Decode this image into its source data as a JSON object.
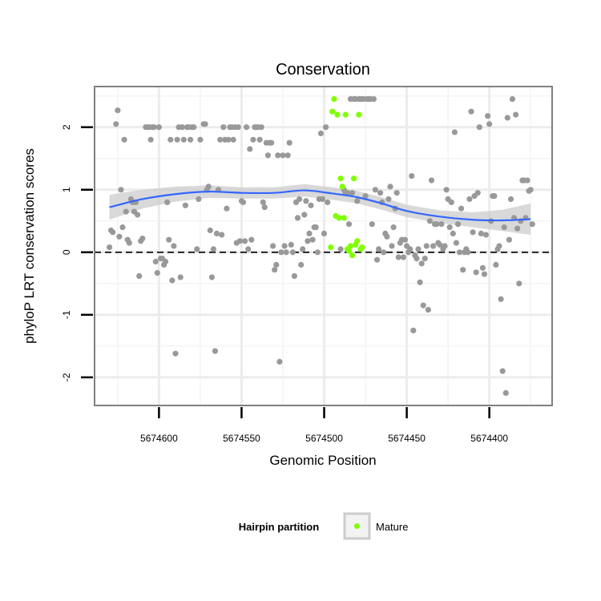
{
  "chart_data": {
    "type": "scatter",
    "title": "Conservation",
    "xlabel": "Genomic Position",
    "ylabel": "phyloP LRT conservation scores",
    "x_reversed": true,
    "xlim": [
      5674639,
      5674362
    ],
    "ylim": [
      -2.45,
      2.65
    ],
    "xticks": [
      5674600,
      5674550,
      5674500,
      5674450,
      5674400
    ],
    "yticks": [
      -2,
      -1,
      0,
      1,
      2
    ],
    "grid": true,
    "reference_line": {
      "y": 0,
      "style": "dashed"
    },
    "legend": {
      "title": "Hairpin partition",
      "position": "bottom",
      "entries": [
        {
          "label": "Mature",
          "color": "#7fff00"
        }
      ]
    },
    "colors": {
      "other": "#999999",
      "mature": "#7fff00",
      "smooth": "#3366ff",
      "band": "#cccccc"
    },
    "series": [
      {
        "group": "other",
        "points": [
          [
            5674630,
            0.08
          ],
          [
            5674629,
            0.35
          ],
          [
            5674628,
            0.32
          ],
          [
            5674626,
            2.05
          ],
          [
            5674625,
            2.27
          ],
          [
            5674624,
            0.25
          ],
          [
            5674623,
            1.0
          ],
          [
            5674622,
            0.4
          ],
          [
            5674621,
            1.8
          ],
          [
            5674620,
            0.65
          ],
          [
            5674619,
            0.2
          ],
          [
            5674618,
            0.15
          ],
          [
            5674617,
            0.85
          ],
          [
            5674616,
            0.8
          ],
          [
            5674615,
            0.65
          ],
          [
            5674614,
            0.8
          ],
          [
            5674613,
            0.6
          ],
          [
            5674612,
            -0.38
          ],
          [
            5674611,
            0.18
          ],
          [
            5674610,
            0.22
          ],
          [
            5674608,
            2.0
          ],
          [
            5674607,
            2.0
          ],
          [
            5674606,
            2.0
          ],
          [
            5674605,
            1.8
          ],
          [
            5674604,
            2.0
          ],
          [
            5674603,
            2.0
          ],
          [
            5674602,
            -0.15
          ],
          [
            5674601,
            -0.33
          ],
          [
            5674600,
            2.0
          ],
          [
            5674599,
            -0.1
          ],
          [
            5674598,
            -0.1
          ],
          [
            5674597,
            -0.2
          ],
          [
            5674596,
            -0.15
          ],
          [
            5674595,
            0.8
          ],
          [
            5674594,
            0.2
          ],
          [
            5674593,
            1.8
          ],
          [
            5674592,
            -0.45
          ],
          [
            5674591,
            0.1
          ],
          [
            5674590,
            -1.62
          ],
          [
            5674589,
            1.8
          ],
          [
            5674588,
            2.0
          ],
          [
            5674587,
            -0.4
          ],
          [
            5674586,
            2.0
          ],
          [
            5674585,
            1.8
          ],
          [
            5674584,
            0.75
          ],
          [
            5674583,
            2.0
          ],
          [
            5674582,
            2.0
          ],
          [
            5674581,
            1.8
          ],
          [
            5674580,
            2.0
          ],
          [
            5674579,
            2.0
          ],
          [
            5674577,
            0.05
          ],
          [
            5674576,
            0.85
          ],
          [
            5674575,
            1.8
          ],
          [
            5674573,
            2.05
          ],
          [
            5674572,
            2.05
          ],
          [
            5674571,
            1.0
          ],
          [
            5674570,
            1.05
          ],
          [
            5674569,
            0.35
          ],
          [
            5674568,
            -0.4
          ],
          [
            5674567,
            0.05
          ],
          [
            5674566,
            -1.58
          ],
          [
            5674565,
            0.3
          ],
          [
            5674564,
            1.0
          ],
          [
            5674563,
            1.8
          ],
          [
            5674562,
            0.28
          ],
          [
            5674561,
            2.0
          ],
          [
            5674560,
            1.8
          ],
          [
            5674559,
            0.7
          ],
          [
            5674558,
            1.8
          ],
          [
            5674557,
            2.0
          ],
          [
            5674556,
            2.0
          ],
          [
            5674555,
            1.8
          ],
          [
            5674554,
            2.0
          ],
          [
            5674553,
            0.15
          ],
          [
            5674552,
            2.0
          ],
          [
            5674551,
            0.18
          ],
          [
            5674550,
            0.82
          ],
          [
            5674549,
            0.8
          ],
          [
            5674548,
            0.18
          ],
          [
            5674547,
            2.0
          ],
          [
            5674546,
            0.05
          ],
          [
            5674545,
            1.65
          ],
          [
            5674544,
            0.2
          ],
          [
            5674543,
            1.8
          ],
          [
            5674542,
            2.0
          ],
          [
            5674541,
            2.0
          ],
          [
            5674540,
            2.0
          ],
          [
            5674539,
            1.8
          ],
          [
            5674538,
            2.0
          ],
          [
            5674537,
            0.8
          ],
          [
            5674536,
            0.72
          ],
          [
            5674535,
            1.75
          ],
          [
            5674534,
            1.55
          ],
          [
            5674533,
            1.75
          ],
          [
            5674532,
            1.75
          ],
          [
            5674531,
            0.1
          ],
          [
            5674530,
            -0.28
          ],
          [
            5674529,
            -0.2
          ],
          [
            5674528,
            1.55
          ],
          [
            5674527,
            -1.75
          ],
          [
            5674526,
            0.0
          ],
          [
            5674525,
            1.55
          ],
          [
            5674524,
            0.1
          ],
          [
            5674523,
            0.0
          ],
          [
            5674522,
            1.55
          ],
          [
            5674521,
            1.75
          ],
          [
            5674520,
            0.12
          ],
          [
            5674519,
            0.0
          ],
          [
            5674518,
            -0.38
          ],
          [
            5674517,
            0.8
          ],
          [
            5674516,
            0.55
          ],
          [
            5674515,
            0.85
          ],
          [
            5674514,
            -0.2
          ],
          [
            5674513,
            0.05
          ],
          [
            5674512,
            0.6
          ],
          [
            5674511,
            0.82
          ],
          [
            5674510,
            0.18
          ],
          [
            5674509,
            0.3
          ],
          [
            5674508,
            0.75
          ],
          [
            5674507,
            0.2
          ],
          [
            5674506,
            0.4
          ],
          [
            5674505,
            0.4
          ],
          [
            5674504,
            0.0
          ],
          [
            5674503,
            0.85
          ],
          [
            5674502,
            1.9
          ],
          [
            5674501,
            0.85
          ],
          [
            5674500,
            0.3
          ],
          [
            5674499,
            2.0
          ],
          [
            5674498,
            0.8
          ],
          [
            5674490,
            0.05
          ],
          [
            5674488,
            1.0
          ],
          [
            5674487,
            0.95
          ],
          [
            5674486,
            0.95
          ],
          [
            5674485,
            0.45
          ],
          [
            5674484,
            2.45
          ],
          [
            5674483,
            0.95
          ],
          [
            5674482,
            2.45
          ],
          [
            5674481,
            2.45
          ],
          [
            5674480,
            0.82
          ],
          [
            5674479,
            2.45
          ],
          [
            5674478,
            2.45
          ],
          [
            5674477,
            2.45
          ],
          [
            5674476,
            2.45
          ],
          [
            5674475,
            0.9
          ],
          [
            5674474,
            2.45
          ],
          [
            5674473,
            2.45
          ],
          [
            5674472,
            2.45
          ],
          [
            5674471,
            0.45
          ],
          [
            5674470,
            2.45
          ],
          [
            5674469,
            1.0
          ],
          [
            5674468,
            -0.12
          ],
          [
            5674467,
            0.05
          ],
          [
            5674466,
            0.95
          ],
          [
            5674465,
            0.8
          ],
          [
            5674464,
            0.0
          ],
          [
            5674463,
            0.3
          ],
          [
            5674462,
            0.25
          ],
          [
            5674461,
            0.85
          ],
          [
            5674460,
            1.05
          ],
          [
            5674459,
            0.1
          ],
          [
            5674458,
            0.4
          ],
          [
            5674457,
            0.7
          ],
          [
            5674456,
            0.95
          ],
          [
            5674455,
            -0.08
          ],
          [
            5674454,
            0.15
          ],
          [
            5674453,
            0.2
          ],
          [
            5674452,
            -0.08
          ],
          [
            5674451,
            0.2
          ],
          [
            5674450,
            0.1
          ],
          [
            5674449,
            0.0
          ],
          [
            5674448,
            0.05
          ],
          [
            5674447,
            1.22
          ],
          [
            5674446,
            -1.25
          ],
          [
            5674445,
            -0.05
          ],
          [
            5674444,
            -0.1
          ],
          [
            5674443,
            0.05
          ],
          [
            5674442,
            -0.48
          ],
          [
            5674441,
            -0.18
          ],
          [
            5674440,
            -0.85
          ],
          [
            5674439,
            -0.1
          ],
          [
            5674438,
            0.1
          ],
          [
            5674437,
            -0.92
          ],
          [
            5674436,
            0.5
          ],
          [
            5674435,
            1.15
          ],
          [
            5674434,
            0.1
          ],
          [
            5674433,
            0.45
          ],
          [
            5674432,
            0.45
          ],
          [
            5674431,
            0.15
          ],
          [
            5674430,
            0.12
          ],
          [
            5674429,
            0.45
          ],
          [
            5674428,
            0.05
          ],
          [
            5674427,
            0.1
          ],
          [
            5674426,
            1.0
          ],
          [
            5674425,
            0.85
          ],
          [
            5674424,
            0.4
          ],
          [
            5674423,
            0.8
          ],
          [
            5674422,
            0.3
          ],
          [
            5674421,
            1.92
          ],
          [
            5674420,
            0.15
          ],
          [
            5674419,
            0.45
          ],
          [
            5674418,
            0.0
          ],
          [
            5674417,
            0.7
          ],
          [
            5674416,
            -0.28
          ],
          [
            5674415,
            0.0
          ],
          [
            5674414,
            0.05
          ],
          [
            5674413,
            0.0
          ],
          [
            5674412,
            0.85
          ],
          [
            5674411,
            2.25
          ],
          [
            5674410,
            0.32
          ],
          [
            5674409,
            0.9
          ],
          [
            5674408,
            -0.32
          ],
          [
            5674407,
            0.95
          ],
          [
            5674406,
            2.0
          ],
          [
            5674405,
            0.3
          ],
          [
            5674404,
            -0.25
          ],
          [
            5674403,
            -0.35
          ],
          [
            5674402,
            0.28
          ],
          [
            5674401,
            2.18
          ],
          [
            5674400,
            2.05
          ],
          [
            5674399,
            0.5
          ],
          [
            5674398,
            0.9
          ],
          [
            5674397,
            0.9
          ],
          [
            5674396,
            -0.2
          ],
          [
            5674395,
            0.05
          ],
          [
            5674394,
            0.1
          ],
          [
            5674393,
            -0.75
          ],
          [
            5674392,
            -1.9
          ],
          [
            5674391,
            0.4
          ],
          [
            5674390,
            -2.25
          ],
          [
            5674389,
            2.15
          ],
          [
            5674388,
            0.2
          ],
          [
            5674387,
            0.85
          ],
          [
            5674386,
            2.45
          ],
          [
            5674385,
            0.55
          ],
          [
            5674384,
            2.2
          ],
          [
            5674383,
            0.38
          ],
          [
            5674382,
            -0.5
          ],
          [
            5674381,
            0.5
          ],
          [
            5674380,
            1.15
          ],
          [
            5674379,
            1.15
          ],
          [
            5674378,
            0.55
          ],
          [
            5674377,
            1.15
          ],
          [
            5674376,
            0.98
          ],
          [
            5674375,
            1.0
          ],
          [
            5674374,
            0.45
          ]
        ]
      },
      {
        "group": "mature",
        "points": [
          [
            5674496,
            0.08
          ],
          [
            5674495,
            2.25
          ],
          [
            5674494,
            2.45
          ],
          [
            5674493,
            0.58
          ],
          [
            5674492,
            2.2
          ],
          [
            5674491,
            0.55
          ],
          [
            5674490,
            1.18
          ],
          [
            5674489,
            1.05
          ],
          [
            5674488,
            0.55
          ],
          [
            5674487,
            2.2
          ],
          [
            5674486,
            0.05
          ],
          [
            5674485,
            0.02
          ],
          [
            5674484,
            0.1
          ],
          [
            5674483,
            -0.05
          ],
          [
            5674482,
            1.18
          ],
          [
            5674481,
            0.12
          ],
          [
            5674480,
            0.18
          ],
          [
            5674479,
            2.2
          ],
          [
            5674478,
            0.05
          ],
          [
            5674477,
            0.08
          ]
        ]
      }
    ],
    "smooth": {
      "x": [
        5674630,
        5674610,
        5674590,
        5674570,
        5674550,
        5674530,
        5674512,
        5674495,
        5674480,
        5674465,
        5674450,
        5674430,
        5674410,
        5674392,
        5674375
      ],
      "y": [
        0.72,
        0.85,
        0.93,
        0.97,
        0.95,
        0.95,
        0.99,
        0.94,
        0.88,
        0.78,
        0.66,
        0.57,
        0.52,
        0.51,
        0.53
      ],
      "se": [
        0.2,
        0.15,
        0.12,
        0.1,
        0.09,
        0.09,
        0.1,
        0.1,
        0.1,
        0.1,
        0.1,
        0.1,
        0.12,
        0.17,
        0.25
      ]
    }
  }
}
